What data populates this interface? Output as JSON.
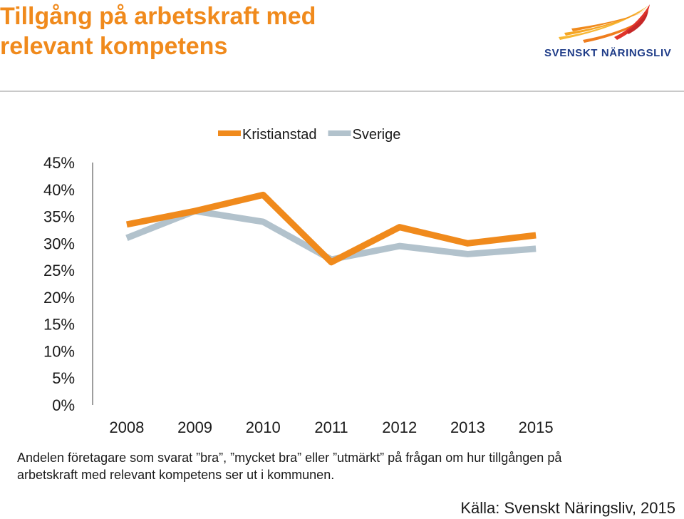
{
  "title": {
    "line1": "Tillgång på arbetskraft med",
    "line2": "relevant kompetens"
  },
  "logo": {
    "text": "SVENSKT NÄRINGSLIV",
    "colors": [
      "#f7b733",
      "#f08a1c",
      "#e0342a",
      "#1f3c88"
    ]
  },
  "chart_data": {
    "type": "line",
    "categories": [
      "2008",
      "2009",
      "2010",
      "2011",
      "2012",
      "2013",
      "2015"
    ],
    "ylim": [
      0,
      45
    ],
    "yticks": [
      0,
      5,
      10,
      15,
      20,
      25,
      30,
      35,
      40,
      45
    ],
    "ytick_format": "%",
    "grid": false,
    "legend_position": "top",
    "series": [
      {
        "name": "Kristianstad",
        "color": "#f08a1c",
        "values": [
          33.5,
          36,
          39,
          26.5,
          33,
          30,
          31.5
        ]
      },
      {
        "name": "Sverige",
        "color": "#b2c2cc",
        "values": [
          31,
          36,
          34,
          27,
          29.5,
          28,
          29
        ]
      }
    ]
  },
  "caption": {
    "line1": "Andelen företagare som svarat ”bra”, ”mycket bra” eller ”utmärkt” på frågan om hur tillgången på",
    "line2": "arbetskraft med relevant kompetens ser ut i kommunen."
  },
  "source": "Källa: Svenskt Näringsliv, 2015"
}
